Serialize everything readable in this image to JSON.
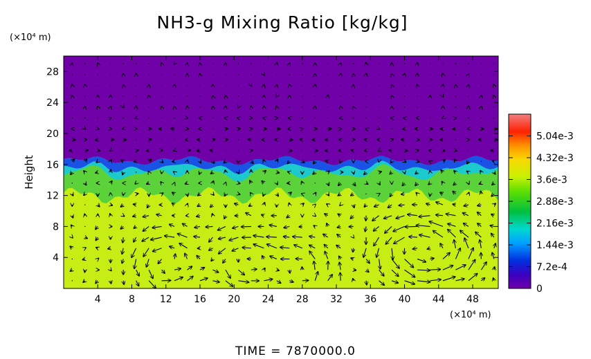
{
  "chart_data": {
    "type": "heatmap",
    "title": "NH3-g Mixing Ratio [kg/kg]",
    "ylabel": "Height",
    "x_unit": "(×10⁴ m)",
    "y_unit": "(×10⁴ m)",
    "x_ticks": [
      "4",
      "8",
      "12",
      "16",
      "20",
      "24",
      "28",
      "32",
      "36",
      "40",
      "44",
      "48"
    ],
    "y_ticks": [
      "4",
      "8",
      "12",
      "16",
      "20",
      "24",
      "28"
    ],
    "xlim": [
      0,
      51
    ],
    "ylim": [
      0,
      30
    ],
    "colorbar": {
      "ticks": [
        "5.04e-3",
        "4.32e-3",
        "3.6e-3",
        "2.88e-3",
        "2.16e-3",
        "1.44e-3",
        "7.2e-4",
        "0"
      ],
      "range": [
        0,
        0.00576
      ]
    },
    "field": {
      "description_values": "mixing ratio by height band",
      "upper_value": 0.0,
      "interface_height": 16.5,
      "middle_value": 0.003,
      "lower_value": 0.004,
      "lower_height": 12
    },
    "vectors": "wind vector overlay",
    "footer": "TIME  =  7870000.0"
  }
}
